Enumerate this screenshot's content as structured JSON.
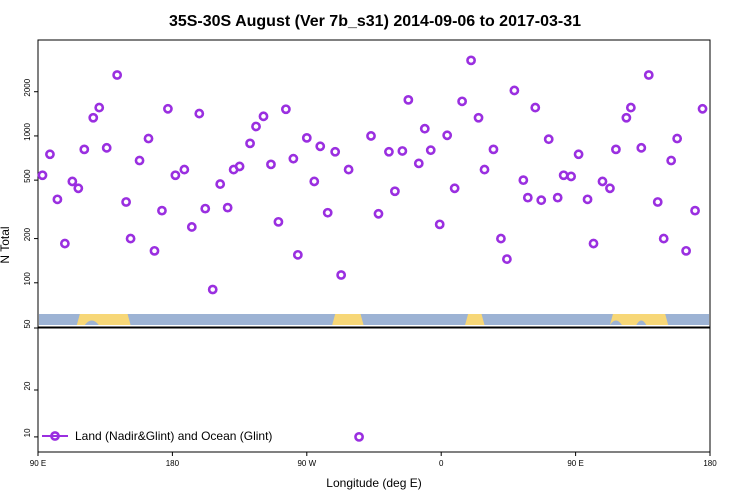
{
  "chart_data": {
    "type": "scatter",
    "title": "35S-30S August (Ver 7b_s31)   2014-09-06 to 2017-03-31",
    "xlabel": "Longitude (deg E)",
    "ylabel": "N Total",
    "y_scale": "log",
    "x_ticks": [
      {
        "value": 90,
        "label": "90 E"
      },
      {
        "value": 180,
        "label": "180"
      },
      {
        "value": 270,
        "label": "90 W"
      },
      {
        "value": 360,
        "label": "0"
      },
      {
        "value": 450,
        "label": "90 E"
      },
      {
        "value": 540,
        "label": "180"
      }
    ],
    "xlim": [
      90,
      540
    ],
    "upper_panel": {
      "ylim": [
        50,
        4500
      ],
      "y_ticks": [
        {
          "value": 100,
          "label": "100"
        },
        {
          "value": 200,
          "label": "200"
        },
        {
          "value": 500,
          "label": "500"
        },
        {
          "value": 1000,
          "label": "1000"
        },
        {
          "value": 2000,
          "label": "2000"
        }
      ]
    },
    "lower_panel": {
      "ylim": [
        8,
        50
      ],
      "y_ticks": [
        {
          "value": 10,
          "label": "10"
        },
        {
          "value": 20,
          "label": "20"
        },
        {
          "value": 50,
          "label": "50"
        }
      ]
    },
    "legend": {
      "label": "Land (Nadir&Glint) and Ocean (Glint)",
      "position": "bottom-left"
    },
    "colors": {
      "marker": "#9a2fe0",
      "ocean": "#9db3d4",
      "land": "#f7d777"
    },
    "series": [
      {
        "name": "Land (Nadir&Glint) and Ocean (Glint)",
        "points": [
          [
            93,
            540
          ],
          [
            98,
            750
          ],
          [
            103,
            370
          ],
          [
            108,
            185
          ],
          [
            113,
            490
          ],
          [
            117,
            440
          ],
          [
            121,
            810
          ],
          [
            127,
            1330
          ],
          [
            131,
            1560
          ],
          [
            136,
            830
          ],
          [
            143,
            2600
          ],
          [
            149,
            355
          ],
          [
            152,
            200
          ],
          [
            158,
            680
          ],
          [
            164,
            960
          ],
          [
            168,
            165
          ],
          [
            173,
            310
          ],
          [
            177,
            1530
          ],
          [
            182,
            540
          ],
          [
            188,
            590
          ],
          [
            193,
            240
          ],
          [
            198,
            1420
          ],
          [
            202,
            320
          ],
          [
            207,
            90
          ],
          [
            212,
            470
          ],
          [
            217,
            325
          ],
          [
            221,
            590
          ],
          [
            225,
            620
          ],
          [
            232,
            890
          ],
          [
            236,
            1160
          ],
          [
            241,
            1360
          ],
          [
            246,
            640
          ],
          [
            251,
            260
          ],
          [
            256,
            1520
          ],
          [
            261,
            700
          ],
          [
            264,
            155
          ],
          [
            270,
            970
          ],
          [
            275,
            490
          ],
          [
            279,
            850
          ],
          [
            284,
            300
          ],
          [
            289,
            780
          ],
          [
            293,
            113
          ],
          [
            298,
            590
          ],
          [
            313,
            1000
          ],
          [
            318,
            295
          ],
          [
            325,
            780
          ],
          [
            329,
            420
          ],
          [
            334,
            790
          ],
          [
            338,
            1760
          ],
          [
            345,
            650
          ],
          [
            349,
            1120
          ],
          [
            353,
            800
          ],
          [
            359,
            250
          ],
          [
            364,
            1010
          ],
          [
            369,
            440
          ],
          [
            374,
            1720
          ],
          [
            380,
            3270
          ],
          [
            385,
            1330
          ],
          [
            389,
            590
          ],
          [
            395,
            810
          ],
          [
            400,
            200
          ],
          [
            404,
            145
          ],
          [
            409,
            2040
          ],
          [
            415,
            500
          ],
          [
            418,
            380
          ],
          [
            423,
            1560
          ],
          [
            427,
            365
          ],
          [
            432,
            950
          ],
          [
            438,
            380
          ],
          [
            442,
            540
          ],
          [
            447,
            530
          ],
          [
            452,
            750
          ],
          [
            458,
            370
          ],
          [
            462,
            185
          ],
          [
            468,
            490
          ],
          [
            473,
            440
          ],
          [
            477,
            810
          ],
          [
            484,
            1330
          ],
          [
            487,
            1560
          ],
          [
            494,
            830
          ],
          [
            499,
            2600
          ],
          [
            505,
            355
          ],
          [
            509,
            200
          ],
          [
            514,
            680
          ],
          [
            518,
            960
          ],
          [
            524,
            165
          ],
          [
            530,
            310
          ],
          [
            535,
            1530
          ]
        ]
      },
      {
        "name": "",
        "panel": "lower",
        "points": [
          [
            305,
            10
          ]
        ]
      }
    ]
  }
}
